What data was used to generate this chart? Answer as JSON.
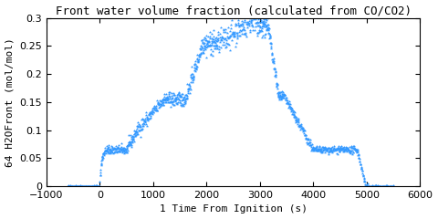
{
  "title": "Front water volume fraction (calculated from CO/CO2)",
  "xlabel": "1 Time From Ignition (s)",
  "ylabel": "64 H2OFront (mol/mol)",
  "xlim": [
    -1000,
    6000
  ],
  "ylim": [
    0,
    0.3
  ],
  "xticks": [
    -1000,
    0,
    1000,
    2000,
    3000,
    4000,
    5000,
    6000
  ],
  "yticks": [
    0,
    0.05,
    0.1,
    0.15,
    0.2,
    0.25,
    0.3
  ],
  "line_color": "#3399ff",
  "bg_color": "#ffffff",
  "title_fontsize": 9,
  "label_fontsize": 8,
  "tick_fontsize": 8
}
